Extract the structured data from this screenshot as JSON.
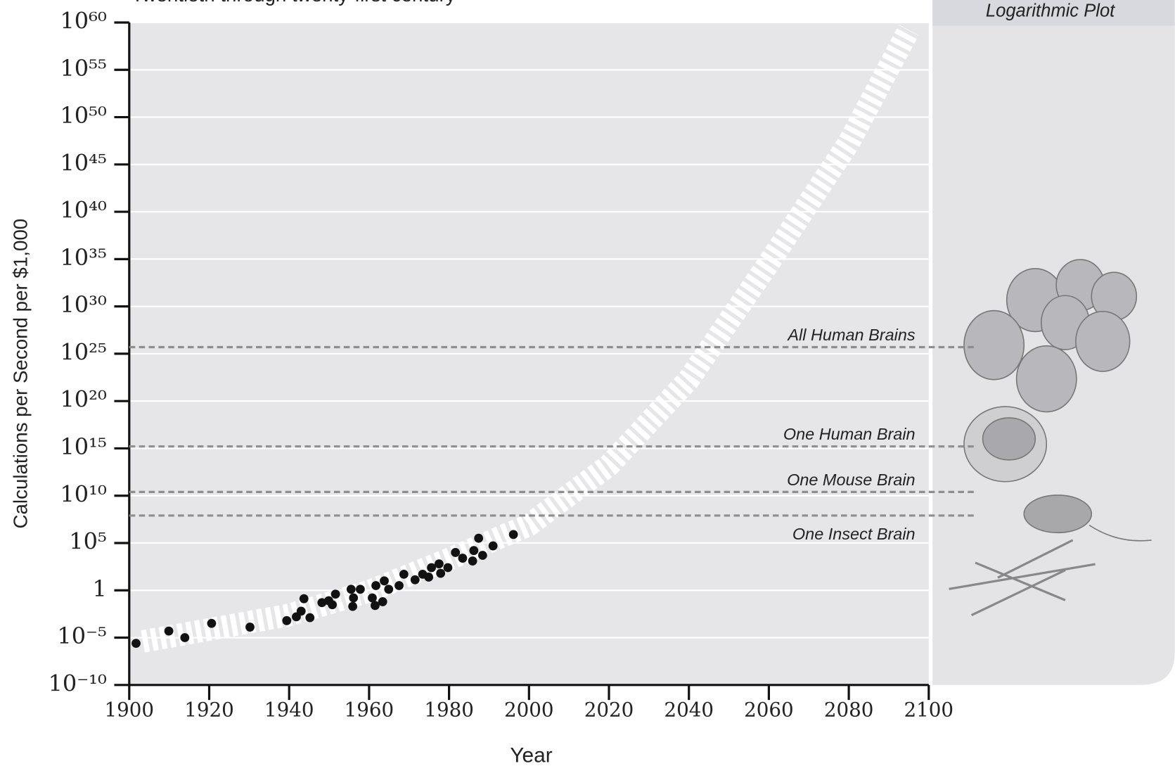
{
  "chart_data": {
    "type": "scatter",
    "subtitle": "Twentieth through twenty-first century",
    "panel_label": "Logarithmic Plot",
    "x_label": "Year",
    "y_label": "Calculations per Second per $1,000",
    "log_y": true,
    "grid": true,
    "xlim": [
      1900,
      2100
    ],
    "xticks": [
      1900,
      1920,
      1940,
      1960,
      1980,
      2000,
      2020,
      2040,
      2060,
      2080,
      2100
    ],
    "ylim": [
      1e-10,
      1e+60
    ],
    "yticks": [
      {
        "value": 1e-10,
        "label": "10⁻¹⁰"
      },
      {
        "value": 1e-05,
        "label": "10⁻⁵"
      },
      1,
      {
        "value": 100000.0,
        "label": "10⁵"
      },
      {
        "value": 10000000000.0,
        "label": "10¹⁰"
      },
      {
        "value": 1000000000000000.0,
        "label": "10¹⁵"
      },
      {
        "value": 1e+20,
        "label": "10²⁰"
      },
      {
        "value": 1e+25,
        "label": "10²⁵"
      },
      {
        "value": 1e+30,
        "label": "10³⁰"
      },
      {
        "value": 1e+35,
        "label": "10³⁵"
      },
      {
        "value": 1e+40,
        "label": "10⁴⁰"
      },
      {
        "value": 1e+45,
        "label": "10⁴⁵"
      },
      {
        "value": 1e+50,
        "label": "10⁵⁰"
      },
      {
        "value": 1e+55,
        "label": "10⁵⁵"
      },
      {
        "value": 1e+60,
        "label": "10⁶⁰"
      }
    ],
    "series": [
      {
        "color": "#111111",
        "x": [
          1901.7,
          1909.9,
          1913.9,
          1920.6,
          1930.2,
          1939.4,
          1941.8,
          1943.0,
          1943.7,
          1945.2,
          1948.2,
          1949.9,
          1950.8,
          1951.6,
          1955.5,
          1955.9,
          1956.1,
          1957.8,
          1960.8,
          1961.5,
          1961.7,
          1963.4,
          1963.8,
          1964.9,
          1967.5,
          1968.7,
          1971.5,
          1973.4,
          1974.9,
          1975.6,
          1977.5,
          1977.9,
          1979.7,
          1981.6,
          1983.4,
          1985.9,
          1986.2,
          1987.4,
          1988.4,
          1991.0,
          1996.1
        ],
        "values": [
          2.5e-06,
          5e-05,
          1e-05,
          0.00032,
          0.00013,
          0.00063,
          0.0016,
          0.0063,
          0.13,
          0.0013,
          0.05,
          0.08,
          0.03,
          0.4,
          1.3,
          0.02,
          0.16,
          1.3,
          0.16,
          0.025,
          3.2,
          0.063,
          10,
          1.3,
          3.2,
          50,
          13,
          50,
          25,
          250,
          630,
          63,
          250,
          10000,
          2500,
          1260,
          16000,
          320000,
          5000,
          50000,
          800000
        ]
      }
    ],
    "trend": {
      "color": "#ffffff",
      "x": [
        1903.4,
        1940,
        1960,
        1980,
        2000,
        2020,
        2040,
        2060,
        2080,
        2095
      ],
      "values": [
        4e-06,
        0.0025,
        0.8,
        2000,
        8000000.0,
        16000000000000.0,
        2e+22,
        4e+34,
        2e+47,
        1.6e+59
      ]
    },
    "reference_lines": [
      {
        "label": "All Human Brains",
        "value": 5e+25
      },
      {
        "label": "One Human Brain",
        "value": 1600000000000000.0
      },
      {
        "label": "One Mouse Brain",
        "value": 25000000000.0
      },
      {
        "label": "One Insect Brain",
        "value": 80000000.0
      }
    ]
  }
}
